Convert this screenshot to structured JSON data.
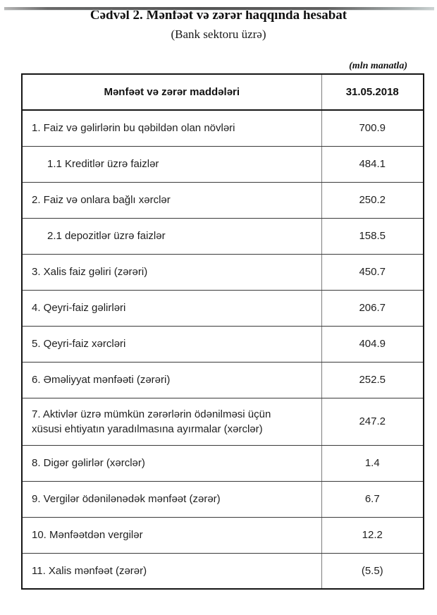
{
  "page": {
    "title": "Cədvəl 2. Mənfəət və zərər haqqında hesabat",
    "subtitle": "(Bank sektoru üzrə)",
    "unit_note": "(mln manatla)"
  },
  "table": {
    "headers": [
      "Mənfəət və zərər maddələri",
      "31.05.2018"
    ],
    "rows": [
      {
        "label": "1. Faiz və gəlirlərin bu qəbildən olan növləri",
        "value": "700.9",
        "indent": false
      },
      {
        "label": "1.1 Kreditlər üzrə faizlər",
        "value": "484.1",
        "indent": true
      },
      {
        "label": "2. Faiz və onlara bağlı xərclər",
        "value": "250.2",
        "indent": false
      },
      {
        "label": "2.1 depozitlər üzrə faizlər",
        "value": "158.5",
        "indent": true
      },
      {
        "label": "3. Xalis faiz gəliri (zərəri)",
        "value": "450.7",
        "indent": false
      },
      {
        "label": "4. Qeyri-faiz gəlirləri",
        "value": "206.7",
        "indent": false
      },
      {
        "label": "5. Qeyri-faiz xərcləri",
        "value": "404.9",
        "indent": false
      },
      {
        "label": "6. Əməliyyat mənfəəti (zərəri)",
        "value": "252.5",
        "indent": false
      },
      {
        "label": "7. Aktivlər üzrə mümkün zərərlərin ödənilməsi üçün xüsusi ehtiyatın yaradılmasına ayırmalar (xərclər)",
        "value": "247.2",
        "indent": false
      },
      {
        "label": "8. Digər gəlirlər (xərclər)",
        "value": "1.4",
        "indent": false
      },
      {
        "label": "9. Vergilər ödənilənədək mənfəət (zərər)",
        "value": "6.7",
        "indent": false
      },
      {
        "label": "10. Mənfəətdən vergilər",
        "value": "12.2",
        "indent": false
      },
      {
        "label": "11. Xalis mənfəət (zərər)",
        "value": "(5.5)",
        "indent": false
      }
    ]
  }
}
